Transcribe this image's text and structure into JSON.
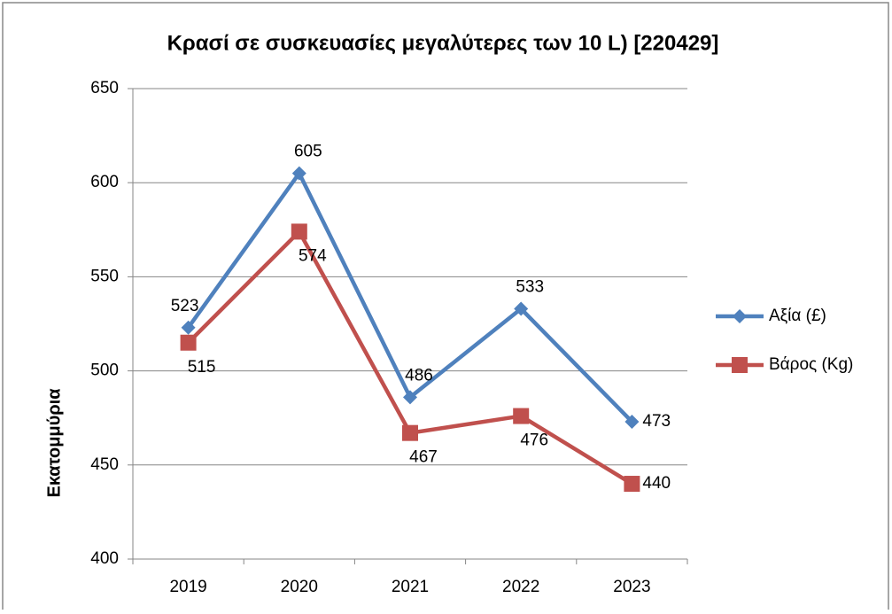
{
  "chart_data": {
    "type": "line",
    "title": "Κρασί σε συσκευασίες μεγαλύτερες των 10 L) [220429]",
    "y_label": "Εκατομμύρια",
    "categories": [
      "2019",
      "2020",
      "2021",
      "2022",
      "2023"
    ],
    "series": [
      {
        "name": "Αξία (£)",
        "color": "#4f81bd",
        "marker": "diamond",
        "values": [
          523,
          605,
          486,
          533,
          473
        ]
      },
      {
        "name": "Βάρος (Kg)",
        "color": "#c0504d",
        "marker": "square",
        "values": [
          515,
          574,
          467,
          476,
          440
        ]
      }
    ],
    "ylim": [
      400,
      650
    ],
    "yticks": [
      400,
      450,
      500,
      550,
      600,
      650
    ],
    "grid": true,
    "legend": "right"
  }
}
